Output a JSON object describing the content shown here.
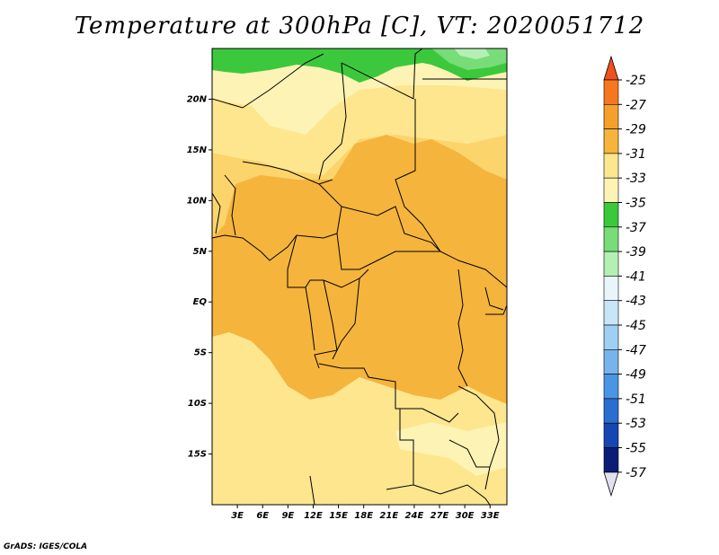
{
  "title": "Temperature at 300hPa [C], VT: 2020051712",
  "credit": "GrADS: IGES/COLA",
  "map": {
    "lon_range": [
      0,
      35
    ],
    "lat_range": [
      -20,
      25
    ],
    "lon_ticks": [
      "3E",
      "6E",
      "9E",
      "12E",
      "15E",
      "18E",
      "21E",
      "24E",
      "27E",
      "30E",
      "33E"
    ],
    "lat_ticks": [
      "20N",
      "15N",
      "10N",
      "5N",
      "EQ",
      "5S",
      "10S",
      "15S"
    ],
    "colors": {
      "c_minus29_27": "#f5b43c",
      "c_minus31_29": "#fbd46c",
      "c_minus33_31": "#fde68e",
      "c_minus35_33": "#fdf3b4",
      "c_minus37_35": "#3cc83c",
      "c_minus39_37": "#78dc78",
      "c_minus41_39": "#b4f0b4",
      "border": "#000000"
    }
  },
  "colorbar": {
    "labels": [
      "-25",
      "-27",
      "-29",
      "-31",
      "-33",
      "-35",
      "-37",
      "-39",
      "-41",
      "-43",
      "-45",
      "-47",
      "-49",
      "-51",
      "-53",
      "-55",
      "-57"
    ],
    "colors": [
      "#f0501e",
      "#f5781e",
      "#f5a02d",
      "#f5b43c",
      "#fde68e",
      "#fdf3b4",
      "#3cc83c",
      "#78dc78",
      "#b4f0b4",
      "#e8f6fc",
      "#c8e6f8",
      "#9fcff2",
      "#78b4ec",
      "#4b96e4",
      "#2a6ed2",
      "#1446b4",
      "#0a1e78",
      "#0a0a4b"
    ],
    "top_arrow_color": "#f0501e",
    "bottom_arrow_color": "#e0e0f0"
  }
}
